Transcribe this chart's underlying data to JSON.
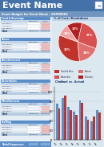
{
  "title": "Event Name",
  "subtitle": "Event Budget for Event Name : EXPENSES",
  "title_bg": "#4472a8",
  "subtitle_bg": "#7096c0",
  "page_bg": "#d0dcea",
  "table_header_bg": "#5b8ec9",
  "table_subhdr_bg": "#c5d5e8",
  "table_row_bg1": "#dce6f1",
  "table_row_bg2": "#edf2f8",
  "table_total_bg": "#b8ccdf",
  "red_cell": "#f2c0c0",
  "pie_colors": [
    "#c0332b",
    "#e07070",
    "#d85050",
    "#b02020",
    "#f0a0a0"
  ],
  "pie_values": [
    32,
    18,
    27,
    13,
    10
  ],
  "bar_categories": [
    "C1",
    "C2",
    "C3",
    "C4",
    "C5",
    "C6",
    "C7",
    "C8"
  ],
  "bar_budget": [
    75,
    88,
    68,
    58,
    82,
    48,
    38,
    62
  ],
  "bar_actual": [
    65,
    93,
    62,
    52,
    78,
    42,
    48,
    57
  ],
  "bar_color_budget": "#5b8ec9",
  "bar_color_actual": "#c0332b",
  "sections": [
    "Food & Beverage",
    "Venue",
    "Entertainment",
    "Decorations",
    "Miscellaneous",
    "Staffing"
  ],
  "num_rows_per_section": 3
}
